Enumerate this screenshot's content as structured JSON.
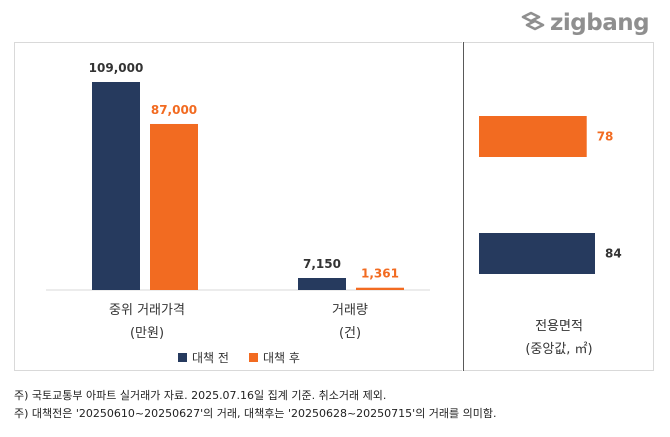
{
  "brand": {
    "logo_text": "zigbang",
    "logo_color": "#8f8f8f"
  },
  "colors": {
    "before": "#263a5e",
    "after": "#f26b21"
  },
  "legend": {
    "before": "대책 전",
    "after": "대책 후"
  },
  "categories": {
    "price_line1": "중위 거래가격",
    "price_line2": "(만원)",
    "count_line1": "거래량",
    "count_line2": "(건)",
    "area_line1": "전용면적",
    "area_line2": "(중앙값, ㎡)"
  },
  "notes": {
    "line1": "주) 국토교통부 아파트 실거래가 자료. 2025.07.16일 집계 기준. 취소거래 제외.",
    "line2": "주) 대책전은 '20250610~20250627'의 거래, 대책후는 '20250628~20250715'의 거래를 의미함."
  },
  "chart_data": [
    {
      "type": "bar",
      "categories": [
        "중위 거래가격 (만원)",
        "거래량 (건)"
      ],
      "series": [
        {
          "name": "대책 전",
          "values": [
            109000,
            7150
          ],
          "labels": [
            "109,000",
            "7,150"
          ]
        },
        {
          "name": "대책 후",
          "values": [
            87000,
            1361
          ],
          "labels": [
            "87,000",
            "1,361"
          ]
        }
      ],
      "legend": "bottom"
    },
    {
      "type": "bar",
      "orientation": "horizontal",
      "categories": [
        "전용면적 (중앙값, ㎡)"
      ],
      "series": [
        {
          "name": "대책 전",
          "values": [
            84
          ],
          "labels": [
            "84"
          ]
        },
        {
          "name": "대책 후",
          "values": [
            78
          ],
          "labels": [
            "78"
          ]
        }
      ]
    }
  ]
}
